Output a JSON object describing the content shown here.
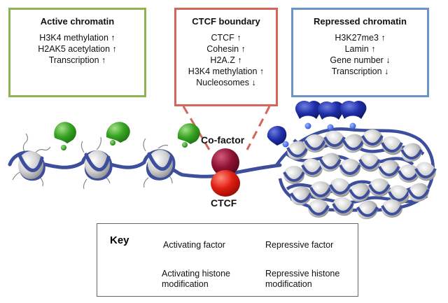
{
  "active": {
    "title": "Active chromatin",
    "items": [
      "H3K4 methylation ↑",
      "H2AK5 acetylation ↑",
      "Transcription ↑"
    ]
  },
  "ctcf_boundary": {
    "title": "CTCF boundary",
    "items": [
      "CTCF ↑",
      "Cohesin ↑",
      "H2A.Z ↑",
      "H3K4 methylation ↑",
      "Nucleosomes ↓"
    ]
  },
  "repressed": {
    "title": "Repressed chromatin",
    "items": [
      "H3K27me3 ↑",
      "Lamin ↑",
      "Gene number ↓",
      "Transcription ↓"
    ]
  },
  "labels": {
    "cofactor": "Co-factor",
    "ctcf": "CTCF"
  },
  "key": {
    "title": "Key",
    "activating_factor": "Activating factor",
    "repressive_factor": "Repressive factor",
    "activating_mod": "Activating histone modification",
    "repressive_mod": "Repressive histone modification"
  },
  "colors": {
    "active_border": "#8fb454",
    "ctcf_border": "#d6645a",
    "repressed_border": "#6b96c4",
    "dna": "#3d4f9c",
    "activating_factor": "#2f9a1e",
    "repressive_factor": "#1f2a9a",
    "cofactor": "#8a1030",
    "ctcf": "#d81c10"
  }
}
